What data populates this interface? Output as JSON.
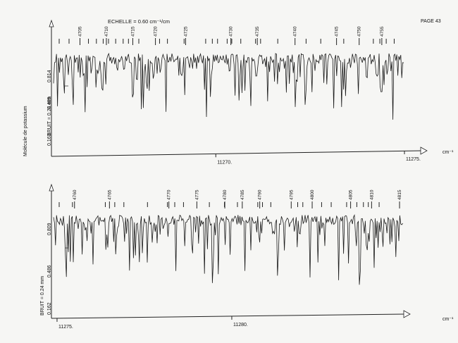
{
  "page_label": "PAGE 43",
  "scale_label": "ECHELLE = 0.60 cm⁻¹/cm",
  "unit_label": "cm⁻¹",
  "molecule_label": "Molécule de potassium",
  "chart_data": [
    {
      "type": "line",
      "title": "",
      "noise_label": "BRUIT = 0.24 mm",
      "intensity_symbol": "I",
      "y_ticks": [
        "0.814",
        "0.489",
        "0.163"
      ],
      "x_ticks": [
        {
          "label": "11270.",
          "value": 11270
        },
        {
          "label": "11275.",
          "value": 11275
        }
      ],
      "xlim": [
        11265.7,
        11275.0
      ],
      "line_numbers": [
        {
          "label": "4705",
          "value": 11266.4
        },
        {
          "label": "4710",
          "value": 11267.1
        },
        {
          "label": "4715",
          "value": 11267.8
        },
        {
          "label": "4720",
          "value": 11268.4
        },
        {
          "label": "4725",
          "value": 11269.2
        },
        {
          "label": "4730",
          "value": 11270.4
        },
        {
          "label": "4735",
          "value": 11271.1
        },
        {
          "label": "4740",
          "value": 11272.1
        },
        {
          "label": "4745",
          "value": 11273.2
        },
        {
          "label": "4750",
          "value": 11273.8
        },
        {
          "label": "4755",
          "value": 11274.4
        }
      ]
    },
    {
      "type": "line",
      "title": "",
      "noise_label": "BRUIT = 0.24 mm",
      "intensity_symbol": "I",
      "y_ticks": [
        "0.809",
        "0.486",
        "0.162"
      ],
      "x_ticks": [
        {
          "label": "11275.",
          "value": 11275
        },
        {
          "label": "11280.",
          "value": 11280
        }
      ],
      "xlim": [
        11274.9,
        11284.9
      ],
      "line_numbers": [
        {
          "label": "4760",
          "value": 11275.5
        },
        {
          "label": "4765",
          "value": 11276.5
        },
        {
          "label": "4770",
          "value": 11278.2
        },
        {
          "label": "4775",
          "value": 11279.0
        },
        {
          "label": "4780",
          "value": 11279.8
        },
        {
          "label": "4785",
          "value": 11280.3
        },
        {
          "label": "4790",
          "value": 11280.8
        },
        {
          "label": "4795",
          "value": 11281.7
        },
        {
          "label": "4800",
          "value": 11282.3
        },
        {
          "label": "4805",
          "value": 11283.4
        },
        {
          "label": "4810",
          "value": 11284.0
        },
        {
          "label": "4815",
          "value": 11284.8
        }
      ]
    }
  ]
}
